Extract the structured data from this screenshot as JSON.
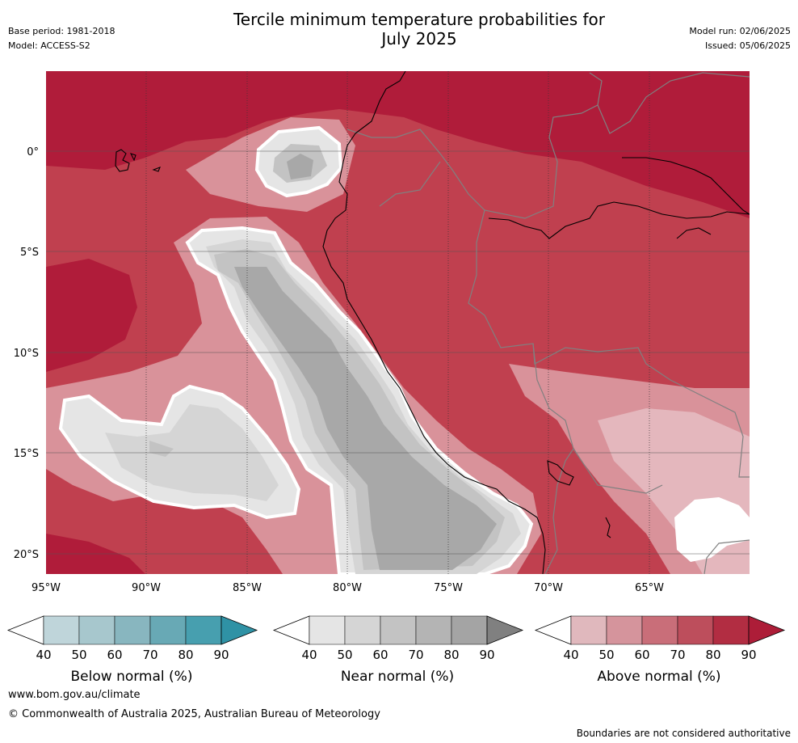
{
  "header": {
    "title_line1": "Tercile minimum temperature probabilities for",
    "title_line2": "July 2025",
    "base_period": "Base period: 1981-2018",
    "model": "Model: ACCESS-S2",
    "model_run": "Model run: 02/06/2025",
    "issued": "Issued: 05/06/2025"
  },
  "map": {
    "lat_labels": [
      "0°",
      "5°S",
      "10°S",
      "15°S",
      "20°S"
    ],
    "lon_labels": [
      "95°W",
      "90°W",
      "85°W",
      "80°W",
      "75°W",
      "70°W",
      "65°W"
    ],
    "colors": {
      "above_90": "#b01c3a",
      "above_80": "#c0404f",
      "above_70": "#cd6b78",
      "above_60": "#d9929a",
      "above_50": "#e4b7bd",
      "near_40": "#e5e5e5",
      "near_50": "#d5d5d5",
      "near_60": "#c3c3c3",
      "near_70": "#a8a8a8",
      "boundary": "#ffffff",
      "coastline": "#000000",
      "borders": "#808080"
    }
  },
  "colorbars": [
    {
      "title": "Below normal (%)",
      "ticks": [
        "40",
        "50",
        "60",
        "70",
        "80",
        "90"
      ],
      "colors": [
        "#ffffff",
        "#bfd5da",
        "#a7c7cd",
        "#88b6bf",
        "#68a9b5",
        "#479faf",
        "#2f92a5"
      ]
    },
    {
      "title": "Near normal (%)",
      "ticks": [
        "40",
        "50",
        "60",
        "70",
        "80",
        "90"
      ],
      "colors": [
        "#ffffff",
        "#e5e5e5",
        "#d5d5d5",
        "#c3c3c3",
        "#b4b4b4",
        "#a4a4a4",
        "#808080"
      ]
    },
    {
      "title": "Above normal (%)",
      "ticks": [
        "40",
        "50",
        "60",
        "70",
        "80",
        "90"
      ],
      "colors": [
        "#ffffff",
        "#e0b8bd",
        "#d5949c",
        "#c96e79",
        "#bd4e5c",
        "#b22d42",
        "#ad1d38"
      ]
    }
  ],
  "footer": {
    "url": "www.bom.gov.au/climate",
    "copyright": "© Commonwealth of Australia 2025, Australian Bureau of Meteorology",
    "note": "Boundaries are not considered authoritative"
  }
}
